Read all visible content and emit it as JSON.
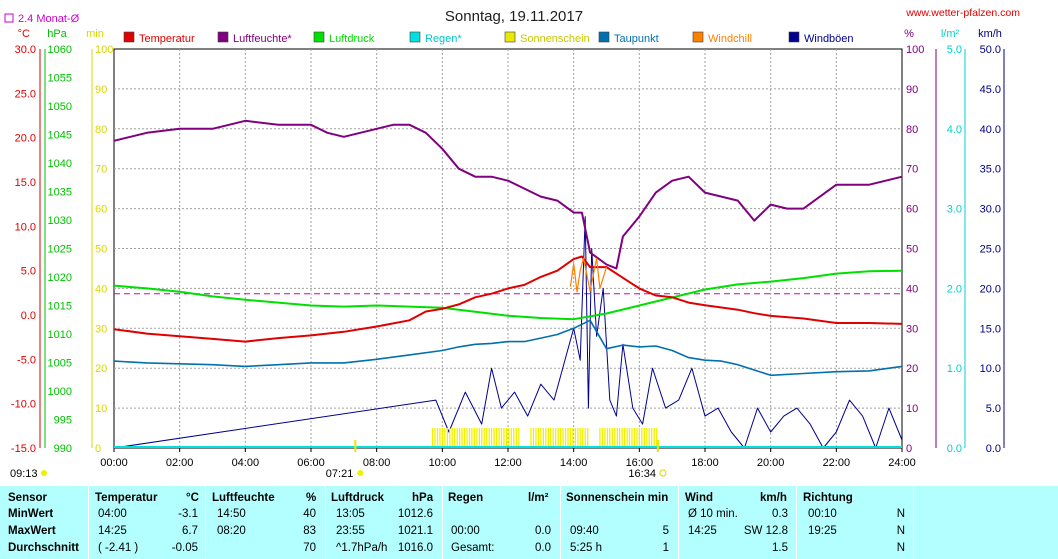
{
  "chart_data": {
    "type": "line",
    "title": "Sonntag, 19.11.2017",
    "site": "www.wetter-pfalzen.com",
    "monthly_avg_label": "2.4 Monat-Ø",
    "axes": {
      "temp": {
        "unit": "°C",
        "range": [
          -15,
          30
        ],
        "ticks": [
          "30.0",
          "25.0",
          "20.0",
          "15.0",
          "10.0",
          "5.0",
          "0.0",
          "-5.0",
          "-10.0",
          "-15.0"
        ]
      },
      "pressure": {
        "unit": "hPa",
        "range": [
          990,
          1060
        ],
        "ticks": [
          "1060",
          "1055",
          "1050",
          "1045",
          "1040",
          "1035",
          "1030",
          "1025",
          "1020",
          "1015",
          "1010",
          "1005",
          "1000",
          "995",
          "990"
        ]
      },
      "sunshine": {
        "unit": "min",
        "range": [
          0,
          100
        ],
        "ticks": [
          "100",
          "90",
          "80",
          "70",
          "60",
          "50",
          "40",
          "30",
          "20",
          "10",
          "0"
        ]
      },
      "humidity": {
        "unit": "%",
        "range": [
          0,
          100
        ],
        "ticks": [
          "100",
          "90",
          "80",
          "70",
          "60",
          "50",
          "40",
          "30",
          "20",
          "10",
          "0"
        ]
      },
      "rain": {
        "unit": "l/m²",
        "range": [
          0,
          5
        ],
        "ticks": [
          "5.0",
          "4.0",
          "3.0",
          "2.0",
          "1.0",
          "0.0"
        ]
      },
      "wind": {
        "unit": "km/h",
        "range": [
          0,
          50
        ],
        "ticks": [
          "50.0",
          "45.0",
          "40.0",
          "35.0",
          "30.0",
          "25.0",
          "20.0",
          "15.0",
          "10.0",
          "5.0",
          "0.0"
        ]
      },
      "x_ticks": [
        "00:00",
        "02:00",
        "04:00",
        "06:00",
        "08:00",
        "10:00",
        "12:00",
        "14:00",
        "16:00",
        "18:00",
        "20:00",
        "22:00",
        "24:00"
      ]
    },
    "legend": [
      {
        "name": "Temperatur",
        "color": "#e00000"
      },
      {
        "name": "Luftfeuchte*",
        "color": "#800080"
      },
      {
        "name": "Luftdruck",
        "color": "#00e000"
      },
      {
        "name": "Regen*",
        "color": "#00e0e0"
      },
      {
        "name": "Sonnenschein",
        "color": "#e8e800"
      },
      {
        "name": "Taupunkt",
        "color": "#0070b0"
      },
      {
        "name": "Windchill",
        "color": "#ff8000"
      },
      {
        "name": "Windböen",
        "color": "#000090"
      }
    ],
    "sunrise": "07:21",
    "sunset": "16:34",
    "current_time": "09:13",
    "monthly_avg_temp": 2.4,
    "series": [
      {
        "name": "Temperatur",
        "x": [
          0,
          1,
          2,
          3,
          4,
          5,
          6,
          7,
          8,
          9,
          9.5,
          10,
          10.5,
          11,
          11.5,
          12,
          12.5,
          13,
          13.5,
          14,
          14.25,
          14.5,
          15,
          15.5,
          16,
          16.5,
          17,
          17.5,
          18,
          19,
          19.5,
          20,
          21,
          22,
          23,
          24
        ],
        "values": [
          -1.6,
          -2.1,
          -2.4,
          -2.7,
          -3.0,
          -2.6,
          -2.3,
          -1.9,
          -1.3,
          -0.6,
          0.4,
          0.7,
          1.2,
          2.0,
          2.4,
          3.0,
          3.4,
          4.3,
          5.0,
          6.3,
          6.6,
          5.4,
          5.4,
          4.2,
          3.0,
          2.2,
          2.0,
          1.4,
          1.1,
          0.6,
          0.2,
          -0.1,
          -0.4,
          -0.9,
          -0.9,
          -1.0
        ]
      },
      {
        "name": "Luftfeuchte*",
        "x": [
          0,
          0.5,
          1,
          2,
          3,
          4,
          5,
          6,
          6.5,
          7,
          8,
          8.5,
          9,
          9.5,
          10,
          10.5,
          11,
          11.5,
          12,
          12.5,
          13,
          13.5,
          14,
          14.25,
          14.5,
          15,
          15.3,
          15.5,
          16,
          16.5,
          17,
          17.5,
          18,
          18.5,
          19,
          19.5,
          20,
          20.5,
          21,
          22,
          23,
          24
        ],
        "values": [
          77,
          78,
          79,
          80,
          80,
          82,
          81,
          81,
          79,
          78,
          80,
          81,
          81,
          79,
          75,
          70,
          68,
          68,
          67,
          65,
          63,
          62,
          59,
          59,
          49,
          46,
          45,
          53,
          58,
          64,
          67,
          68,
          64,
          63,
          62,
          57,
          61,
          60,
          60,
          66,
          66,
          68
        ]
      },
      {
        "name": "Luftdruck",
        "x": [
          0,
          1,
          2,
          3,
          4,
          5,
          6,
          7,
          8,
          9,
          10,
          11,
          12,
          13,
          14,
          15,
          16,
          17,
          18,
          19,
          20,
          21,
          22,
          23,
          24
        ],
        "values": [
          1018.5,
          1018.0,
          1017.4,
          1016.6,
          1016.0,
          1015.5,
          1015.0,
          1014.8,
          1015.0,
          1014.8,
          1014.6,
          1013.9,
          1013.2,
          1012.8,
          1012.6,
          1013.6,
          1015.0,
          1016.4,
          1017.8,
          1018.7,
          1019.2,
          1019.8,
          1020.6,
          1021.0,
          1021.1
        ]
      },
      {
        "name": "Taupunkt",
        "x": [
          0,
          1,
          2,
          3,
          4,
          5,
          6,
          7,
          8,
          9,
          10,
          10.5,
          11,
          11.5,
          12,
          12.5,
          13,
          13.5,
          14,
          14.5,
          15,
          15.5,
          16,
          16.5,
          17,
          17.5,
          18,
          18.5,
          19,
          19.5,
          20,
          21,
          22,
          23,
          24
        ],
        "values": [
          -5.2,
          -5.4,
          -5.5,
          -5.6,
          -5.8,
          -5.6,
          -5.4,
          -5.4,
          -5.0,
          -4.5,
          -4.0,
          -3.6,
          -3.3,
          -3.2,
          -3.0,
          -3.0,
          -2.6,
          -2.2,
          -1.5,
          -0.6,
          -3.8,
          -3.4,
          -3.6,
          -3.5,
          -4.0,
          -4.8,
          -5.1,
          -5.2,
          -5.6,
          -6.2,
          -6.8,
          -6.6,
          -6.4,
          -6.3,
          -5.8
        ]
      },
      {
        "name": "Windchill",
        "x": [
          13.9,
          14,
          14.1,
          14.2,
          14.3,
          14.5,
          14.7,
          14.8,
          15
        ],
        "values": [
          3.2,
          5.8,
          2.6,
          5.0,
          6.4,
          2.7,
          6.4,
          3.0,
          5.4
        ]
      },
      {
        "name": "Windböen",
        "x": [
          0,
          9.8,
          10.2,
          10.7,
          11.2,
          11.5,
          11.8,
          12.2,
          12.6,
          13.0,
          13.4,
          13.8,
          14.0,
          14.2,
          14.35,
          14.45,
          14.55,
          14.7,
          14.9,
          15.1,
          15.3,
          15.5,
          15.8,
          16.1,
          16.4,
          16.8,
          17.2,
          17.6,
          18.0,
          18.4,
          18.8,
          19.2,
          19.6,
          20.0,
          20.4,
          20.8,
          21.2,
          21.6,
          22.0,
          22.4,
          22.8,
          23.2,
          23.6,
          24.0
        ],
        "values": [
          0,
          6,
          2,
          7,
          3,
          10,
          5,
          7,
          4,
          8,
          6,
          12,
          15,
          11,
          29,
          5,
          25,
          14,
          20,
          6,
          4,
          13,
          5,
          3,
          10,
          5,
          6,
          10,
          4,
          5,
          2,
          0,
          5,
          2,
          4,
          5,
          3,
          0,
          2,
          6,
          4,
          0,
          5,
          1
        ]
      },
      {
        "name": "Sonnenschein",
        "x": [
          9.7,
          10.0,
          10.3,
          10.6,
          10.9,
          11.2,
          11.5,
          11.8,
          12.1,
          12.4,
          12.7,
          13.0,
          13.3,
          13.6,
          13.9,
          14.2,
          14.5,
          14.8,
          15.1,
          15.4,
          15.7,
          16.0,
          16.3
        ],
        "values": [
          5,
          5,
          5,
          5,
          5,
          5,
          5,
          5,
          5,
          0,
          5,
          5,
          5,
          5,
          5,
          5,
          0,
          5,
          5,
          5,
          3,
          5,
          2
        ]
      }
    ]
  },
  "table": {
    "headers": {
      "sensor": "Sensor",
      "temp": "Temperatur",
      "temp_unit": "°C",
      "hum": "Luftfeuchte",
      "hum_unit": "%",
      "press": "Luftdruck",
      "press_unit": "hPa",
      "rain": "Regen",
      "rain_unit": "l/m²",
      "sun": "Sonnenschein min",
      "wind": "Wind",
      "wind_unit": "km/h",
      "dir": "Richtung"
    },
    "rows": [
      {
        "label": "MinWert",
        "temp_t": "04:00",
        "temp_v": "-3.1",
        "hum_t": "14:50",
        "hum_v": "40",
        "press_t": "13:05",
        "press_v": "1012.6",
        "rain_t": "",
        "rain_v": "",
        "sun_t": "",
        "sun_v": "",
        "wind_t": "Ø 10 min.",
        "wind_v": "0.3",
        "dir_t": "00:10",
        "dir_v": "N"
      },
      {
        "label": "MaxWert",
        "temp_t": "14:25",
        "temp_v": "6.7",
        "hum_t": "08:20",
        "hum_v": "83",
        "press_t": "23:55",
        "press_v": "1021.1",
        "rain_t": "00:00",
        "rain_v": "0.0",
        "sun_t": "09:40",
        "sun_v": "5",
        "wind_t": "14:25",
        "wind_v": "SW 12.8",
        "dir_t": "19:25",
        "dir_v": "N"
      },
      {
        "label": "Durchschnitt",
        "temp_t": "( -2.41 )",
        "temp_v": "-0.05",
        "hum_t": "",
        "hum_v": "70",
        "press_t": "^1.7hPa/h",
        "press_v": "1016.0",
        "rain_t": "Gesamt:",
        "rain_v": "0.0",
        "sun_t": "5:25 h",
        "sun_v": "1",
        "wind_t": "",
        "wind_v": "1.5",
        "dir_t": "",
        "dir_v": "N"
      }
    ]
  }
}
